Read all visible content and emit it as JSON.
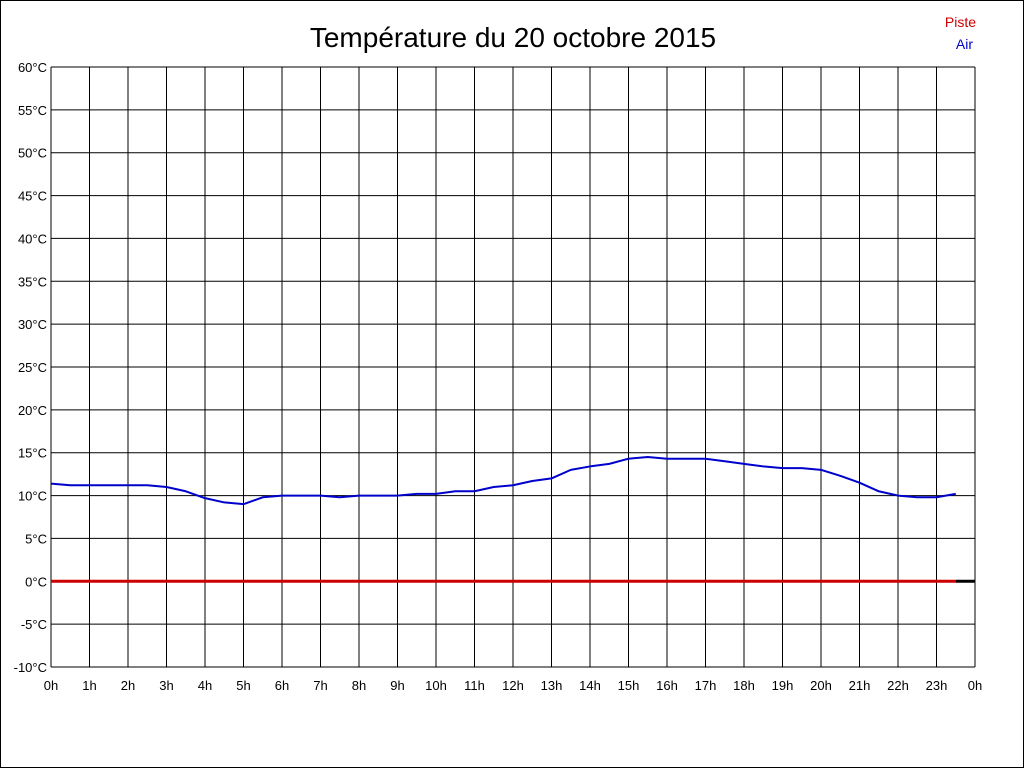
{
  "chart_data": {
    "type": "line",
    "title": "Température du 20 octobre 2015",
    "xlabel": "",
    "ylabel": "",
    "x_range": [
      0,
      24
    ],
    "y_range": [
      -10,
      60
    ],
    "x_ticks": [
      {
        "value": 0,
        "label": "0h"
      },
      {
        "value": 1,
        "label": "1h"
      },
      {
        "value": 2,
        "label": "2h"
      },
      {
        "value": 3,
        "label": "3h"
      },
      {
        "value": 4,
        "label": "4h"
      },
      {
        "value": 5,
        "label": "5h"
      },
      {
        "value": 6,
        "label": "6h"
      },
      {
        "value": 7,
        "label": "7h"
      },
      {
        "value": 8,
        "label": "8h"
      },
      {
        "value": 9,
        "label": "9h"
      },
      {
        "value": 10,
        "label": "10h"
      },
      {
        "value": 11,
        "label": "11h"
      },
      {
        "value": 12,
        "label": "12h"
      },
      {
        "value": 13,
        "label": "13h"
      },
      {
        "value": 14,
        "label": "14h"
      },
      {
        "value": 15,
        "label": "15h"
      },
      {
        "value": 16,
        "label": "16h"
      },
      {
        "value": 17,
        "label": "17h"
      },
      {
        "value": 18,
        "label": "18h"
      },
      {
        "value": 19,
        "label": "19h"
      },
      {
        "value": 20,
        "label": "20h"
      },
      {
        "value": 21,
        "label": "21h"
      },
      {
        "value": 22,
        "label": "22h"
      },
      {
        "value": 23,
        "label": "23h"
      },
      {
        "value": 24,
        "label": "0h"
      }
    ],
    "y_ticks": [
      {
        "value": 60,
        "label": "60°C"
      },
      {
        "value": 55,
        "label": "55°C"
      },
      {
        "value": 50,
        "label": "50°C"
      },
      {
        "value": 45,
        "label": "45°C"
      },
      {
        "value": 40,
        "label": "40°C"
      },
      {
        "value": 35,
        "label": "35°C"
      },
      {
        "value": 30,
        "label": "30°C"
      },
      {
        "value": 25,
        "label": "25°C"
      },
      {
        "value": 20,
        "label": "20°C"
      },
      {
        "value": 15,
        "label": "15°C"
      },
      {
        "value": 10,
        "label": "10°C"
      },
      {
        "value": 5,
        "label": "5°C"
      },
      {
        "value": 0,
        "label": "0°C"
      },
      {
        "value": -5,
        "label": "-5°C"
      },
      {
        "value": -10,
        "label": "-10°C"
      }
    ],
    "grid": true,
    "legend_position": "top-right",
    "series": [
      {
        "name": "Piste",
        "color": "#cc0000",
        "x": [
          0,
          23.5
        ],
        "y": [
          0,
          0
        ]
      },
      {
        "name": "Air",
        "color": "#0000cc",
        "x": [
          0,
          0.5,
          1,
          1.5,
          2,
          2.5,
          3,
          3.5,
          4,
          4.5,
          5,
          5.5,
          6,
          6.5,
          7,
          7.5,
          8,
          8.5,
          9,
          9.5,
          10,
          10.5,
          11,
          11.5,
          12,
          12.5,
          13,
          13.5,
          14,
          14.5,
          15,
          15.5,
          16,
          16.5,
          17,
          17.5,
          18,
          18.5,
          19,
          19.5,
          20,
          20.5,
          21,
          21.5,
          22,
          22.5,
          23,
          23.5
        ],
        "y": [
          11.4,
          11.2,
          11.2,
          11.2,
          11.2,
          11.2,
          11.0,
          10.5,
          9.7,
          9.2,
          9.0,
          9.8,
          10.0,
          10.0,
          10.0,
          9.8,
          10.0,
          10.0,
          10.0,
          10.2,
          10.2,
          10.5,
          10.5,
          11.0,
          11.2,
          11.7,
          12.0,
          13.0,
          13.4,
          13.7,
          14.3,
          14.5,
          14.3,
          14.3,
          14.3,
          14.0,
          13.7,
          13.4,
          13.2,
          13.2,
          13.0,
          12.3,
          11.5,
          10.5,
          10.0,
          9.8,
          9.8,
          10.2
        ]
      }
    ]
  }
}
